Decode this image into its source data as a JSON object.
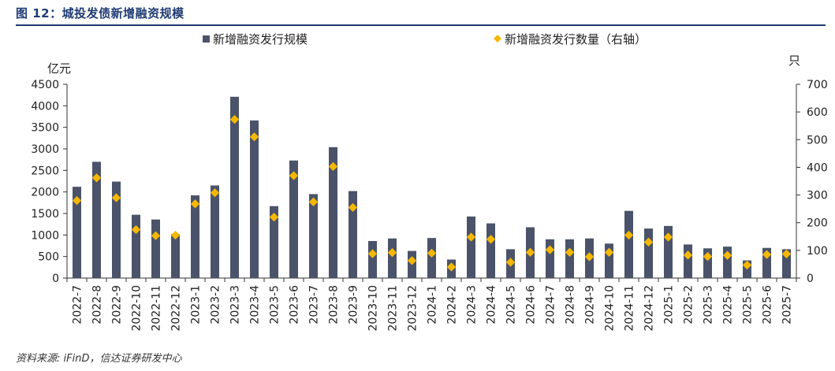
{
  "figure": {
    "title": "图 12：城投发债新增融资规模",
    "source": "资料来源: iFinD，信达证券研发中心"
  },
  "colors": {
    "bar": "#4a5369",
    "marker": "#f5b800",
    "title": "#1f3b73",
    "axis": "#333333"
  },
  "chart_data": {
    "type": "bar",
    "title": "图 12：城投发债新增融资规模",
    "categories": [
      "2022-7",
      "2022-8",
      "2022-9",
      "2022-10",
      "2022-11",
      "2022-12",
      "2023-1",
      "2023-2",
      "2023-3",
      "2023-4",
      "2023-5",
      "2023-6",
      "2023-7",
      "2023-8",
      "2023-9",
      "2023-10",
      "2023-11",
      "2023-12",
      "2024-1",
      "2024-2",
      "2024-3",
      "2024-4",
      "2024-5",
      "2024-6",
      "2024-7",
      "2024-8",
      "2024-9",
      "2024-10",
      "2024-11",
      "2024-12",
      "2025-1",
      "2025-2",
      "2025-3",
      "2025-4",
      "2025-5",
      "2025-6",
      "2025-7"
    ],
    "series": [
      {
        "name": "新增融资发行规模",
        "type": "bar",
        "axis": "left",
        "values": [
          2120,
          2700,
          2240,
          1470,
          1360,
          1020,
          1920,
          2150,
          4210,
          3660,
          1670,
          2730,
          1950,
          3040,
          2020,
          860,
          920,
          630,
          930,
          430,
          1430,
          1270,
          670,
          1180,
          900,
          900,
          920,
          800,
          1560,
          1150,
          1210,
          780,
          690,
          730,
          410,
          700,
          670
        ]
      },
      {
        "name": "新增融资发行数量（右轴）",
        "type": "scatter",
        "axis": "right",
        "values": [
          280,
          362,
          290,
          175,
          153,
          155,
          268,
          308,
          573,
          510,
          220,
          370,
          275,
          403,
          255,
          88,
          92,
          63,
          90,
          40,
          148,
          140,
          57,
          93,
          102,
          93,
          77,
          93,
          155,
          130,
          148,
          83,
          78,
          82,
          47,
          85,
          87
        ]
      }
    ],
    "yleft": {
      "unit": "亿元",
      "lim": [
        0,
        4500
      ],
      "ticks": [
        0,
        500,
        1000,
        1500,
        2000,
        2500,
        3000,
        3500,
        4000,
        4500
      ]
    },
    "yright": {
      "unit": "只",
      "lim": [
        0,
        700
      ],
      "ticks": [
        0,
        100,
        200,
        300,
        400,
        500,
        600,
        700
      ]
    },
    "legend": {
      "position": "top-center"
    },
    "grid": false
  }
}
